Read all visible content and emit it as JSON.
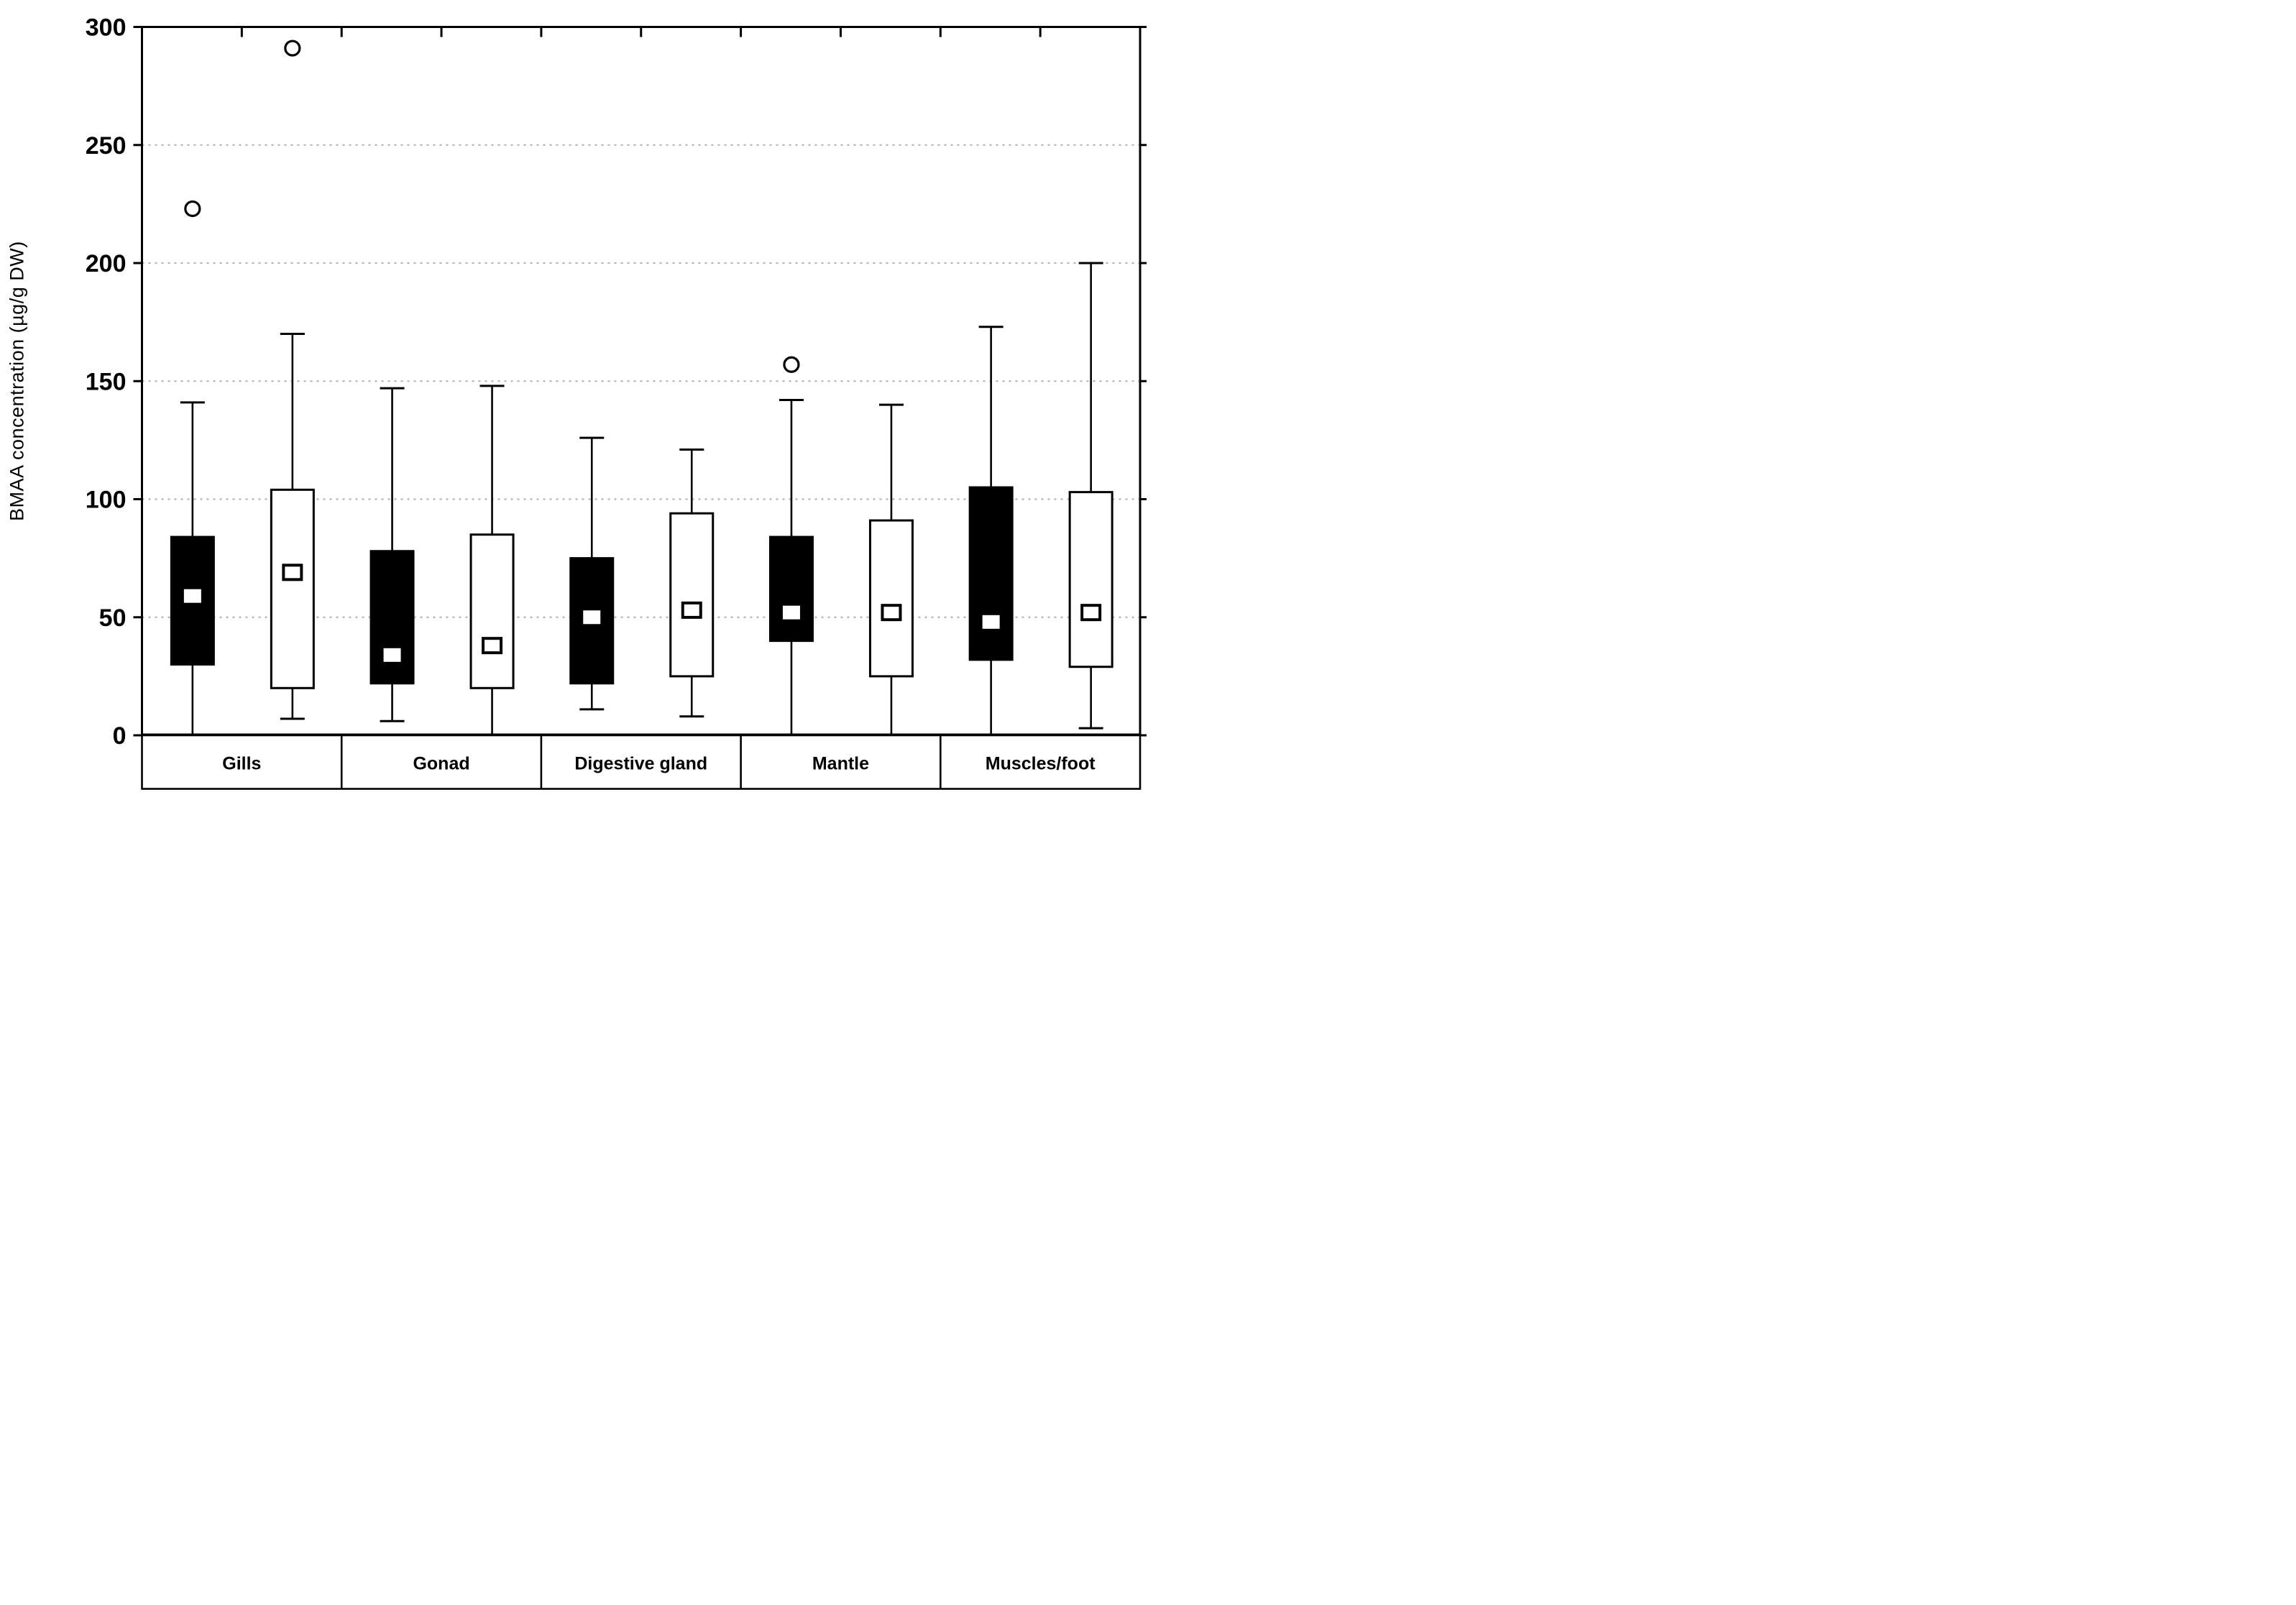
{
  "figure": {
    "kind": "statistical-boxplot",
    "background_color": "#ffffff",
    "foreground_color": "#000000",
    "gridline_color": "#b5b5b5"
  },
  "chart_data": {
    "type": "box",
    "title": "",
    "xlabel": "",
    "ylabel": "BMAA concentration (µg/g DW)",
    "ylim": [
      0,
      300
    ],
    "yticks": [
      0,
      50,
      100,
      150,
      200,
      250,
      300
    ],
    "grid": "horizontal dotted at 50,100,150,200,250",
    "legend_position": "none",
    "marker_notes": "median shown as small white square; outliers as open circles; whiskers with short caps; whiskers reaching 0 touch the axis without cap",
    "categories": [
      "Gills",
      "Gonad",
      "Digestive gland",
      "Mantle",
      "Muscles/foot"
    ],
    "series": [
      {
        "name": "filled",
        "fill": "#000000",
        "boxes": [
          {
            "category": "Gills",
            "min": 0,
            "q1": 30,
            "median": 59,
            "q3": 84,
            "max": 141,
            "outliers": [
              223
            ],
            "min_capped": false
          },
          {
            "category": "Gonad",
            "min": 6,
            "q1": 22,
            "median": 34,
            "q3": 78,
            "max": 147,
            "outliers": [],
            "min_capped": true
          },
          {
            "category": "Digestive gland",
            "min": 11,
            "q1": 22,
            "median": 50,
            "q3": 75,
            "max": 126,
            "outliers": [],
            "min_capped": true
          },
          {
            "category": "Mantle",
            "min": 0,
            "q1": 40,
            "median": 52,
            "q3": 84,
            "max": 142,
            "outliers": [
              157
            ],
            "min_capped": false
          },
          {
            "category": "Muscles/foot",
            "min": 0,
            "q1": 32,
            "median": 48,
            "q3": 105,
            "max": 173,
            "outliers": [],
            "min_capped": false
          }
        ]
      },
      {
        "name": "open",
        "fill": "#ffffff",
        "boxes": [
          {
            "category": "Gills",
            "min": 7,
            "q1": 20,
            "median": 69,
            "q3": 104,
            "max": 170,
            "outliers": [
              291
            ],
            "min_capped": true
          },
          {
            "category": "Gonad",
            "min": 0,
            "q1": 20,
            "median": 38,
            "q3": 85,
            "max": 148,
            "outliers": [],
            "min_capped": false
          },
          {
            "category": "Digestive gland",
            "min": 8,
            "q1": 25,
            "median": 53,
            "q3": 94,
            "max": 121,
            "outliers": [],
            "min_capped": true
          },
          {
            "category": "Mantle",
            "min": 0,
            "q1": 25,
            "median": 52,
            "q3": 91,
            "max": 140,
            "outliers": [],
            "min_capped": false
          },
          {
            "category": "Muscles/foot",
            "min": 3,
            "q1": 29,
            "median": 52,
            "q3": 103,
            "max": 200,
            "outliers": [],
            "min_capped": true
          }
        ]
      }
    ]
  }
}
